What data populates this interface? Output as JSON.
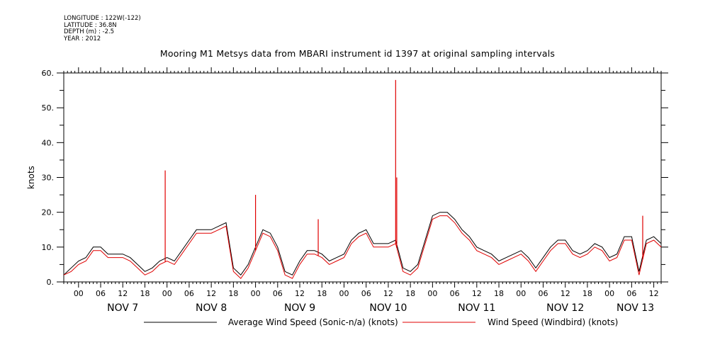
{
  "meta": {
    "longitude": "LONGITUDE : 122W(-122)",
    "latitude": "LATITUDE : 36.8N",
    "depth": "DEPTH (m) : -2.5",
    "year": "YEAR : 2012"
  },
  "colors": {
    "average": "#000000",
    "windbird": "#e00000"
  },
  "chart_data": {
    "type": "line",
    "title": "Mooring M1 Metsys data from MBARI instrument id 1397 at original sampling intervals",
    "xlabel": "",
    "ylabel": "knots",
    "ylim": [
      0,
      60
    ],
    "yticks": [
      0,
      10,
      20,
      30,
      40,
      50,
      60
    ],
    "ytick_labels": [
      "0.",
      "10.",
      "20.",
      "30.",
      "40.",
      "50.",
      "60."
    ],
    "xlim_hours": [
      -4,
      158
    ],
    "xtick_hour_labels": [
      "00",
      "06",
      "12",
      "18"
    ],
    "date_labels": [
      {
        "hour": 12,
        "label": "NOV  7"
      },
      {
        "hour": 36,
        "label": "NOV  8"
      },
      {
        "hour": 60,
        "label": "NOV  9"
      },
      {
        "hour": 84,
        "label": "NOV 10"
      },
      {
        "hour": 108,
        "label": "NOV 11"
      },
      {
        "hour": 132,
        "label": "NOV 12"
      },
      {
        "hour": 151,
        "label": "NOV 13"
      }
    ],
    "x_hours_from_nov7_00": [
      -4,
      -2,
      0,
      2,
      4,
      6,
      8,
      10,
      12,
      14,
      16,
      18,
      20,
      22,
      24,
      26,
      28,
      30,
      32,
      34,
      36,
      38,
      40,
      42,
      44,
      46,
      48,
      50,
      52,
      54,
      56,
      58,
      60,
      62,
      64,
      66,
      68,
      70,
      72,
      74,
      76,
      78,
      80,
      82,
      84,
      86,
      88,
      90,
      92,
      94,
      96,
      98,
      100,
      102,
      104,
      106,
      108,
      110,
      112,
      114,
      116,
      118,
      120,
      122,
      124,
      126,
      128,
      130,
      132,
      134,
      136,
      138,
      140,
      142,
      144,
      146,
      148,
      150,
      152,
      154,
      156,
      158
    ],
    "series": [
      {
        "name": "Average Wind Speed (Sonic-n/a) (knots)",
        "color": "#000000",
        "values": [
          2,
          4,
          6,
          7,
          10,
          10,
          8,
          8,
          8,
          7,
          5,
          3,
          4,
          6,
          7,
          6,
          9,
          12,
          15,
          15,
          15,
          16,
          17,
          4,
          2,
          5,
          10,
          15,
          14,
          10,
          3,
          2,
          6,
          9,
          9,
          8,
          6,
          7,
          8,
          12,
          14,
          15,
          11,
          11,
          11,
          12,
          4,
          3,
          5,
          12,
          19,
          20,
          20,
          18,
          15,
          13,
          10,
          9,
          8,
          6,
          7,
          8,
          9,
          7,
          4,
          7,
          10,
          12,
          12,
          9,
          8,
          9,
          11,
          10,
          7,
          8,
          13,
          13,
          3,
          12,
          13,
          11
        ]
      },
      {
        "name": "Wind Speed (Windbird) (knots)",
        "color": "#e00000",
        "values": [
          2,
          3,
          5,
          6,
          9,
          9,
          7,
          7,
          7,
          6,
          4,
          2,
          3,
          5,
          6,
          5,
          8,
          11,
          14,
          14,
          14,
          15,
          16,
          3,
          1,
          4,
          9,
          14,
          13,
          9,
          2,
          1,
          5,
          8,
          8,
          7,
          5,
          6,
          7,
          11,
          13,
          14,
          10,
          10,
          10,
          11,
          3,
          2,
          4,
          11,
          18,
          19,
          19,
          17,
          14,
          12,
          9,
          8,
          7,
          5,
          6,
          7,
          8,
          6,
          3,
          6,
          9,
          11,
          11,
          8,
          7,
          8,
          10,
          9,
          6,
          7,
          12,
          12,
          2,
          11,
          12,
          10
        ]
      }
    ],
    "spikes": [
      {
        "series": 1,
        "hour": 23.5,
        "value": 32
      },
      {
        "series": 1,
        "hour": 48,
        "value": 25
      },
      {
        "series": 1,
        "hour": 65,
        "value": 18
      },
      {
        "series": 1,
        "hour": 86,
        "value": 58
      },
      {
        "series": 1,
        "hour": 86.3,
        "value": 30
      },
      {
        "series": 1,
        "hour": 153,
        "value": 19
      }
    ],
    "grid": false,
    "legend_position": "bottom"
  }
}
